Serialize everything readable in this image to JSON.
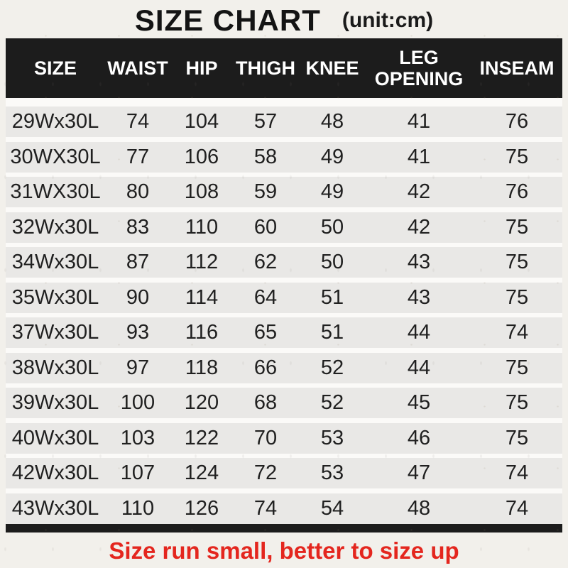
{
  "page": {
    "title": "SIZE CHART",
    "unit_label": "(unit:cm)"
  },
  "chart_data": {
    "type": "table",
    "title": "SIZE CHART",
    "unit": "cm",
    "columns": [
      "SIZE",
      "WAIST",
      "HIP",
      "THIGH",
      "KNEE",
      "LEG OPENING",
      "INSEAM"
    ],
    "rows": [
      [
        "29Wx30L",
        74,
        104,
        57,
        48,
        41,
        76
      ],
      [
        "30WX30L",
        77,
        106,
        58,
        49,
        41,
        75
      ],
      [
        "31WX30L",
        80,
        108,
        59,
        49,
        42,
        76
      ],
      [
        "32Wx30L",
        83,
        110,
        60,
        50,
        42,
        75
      ],
      [
        "34Wx30L",
        87,
        112,
        62,
        50,
        43,
        75
      ],
      [
        "35Wx30L",
        90,
        114,
        64,
        51,
        43,
        75
      ],
      [
        "37Wx30L",
        93,
        116,
        65,
        51,
        44,
        74
      ],
      [
        "38Wx30L",
        97,
        118,
        66,
        52,
        44,
        75
      ],
      [
        "39Wx30L",
        100,
        120,
        68,
        52,
        45,
        75
      ],
      [
        "40Wx30L",
        103,
        122,
        70,
        53,
        46,
        75
      ],
      [
        "42Wx30L",
        107,
        124,
        72,
        53,
        47,
        74
      ],
      [
        "43Wx30L",
        110,
        126,
        74,
        54,
        48,
        74
      ]
    ],
    "note": "Size run small, better to size up"
  },
  "colors": {
    "page_bg": "#f2f0eb",
    "header_bg": "#1c1c1c",
    "header_text": "#ffffff",
    "row_bg": "#e9e8e6",
    "row_gap": "#fbfaf8",
    "cell_text": "#202020",
    "note_text": "#e4261e"
  }
}
